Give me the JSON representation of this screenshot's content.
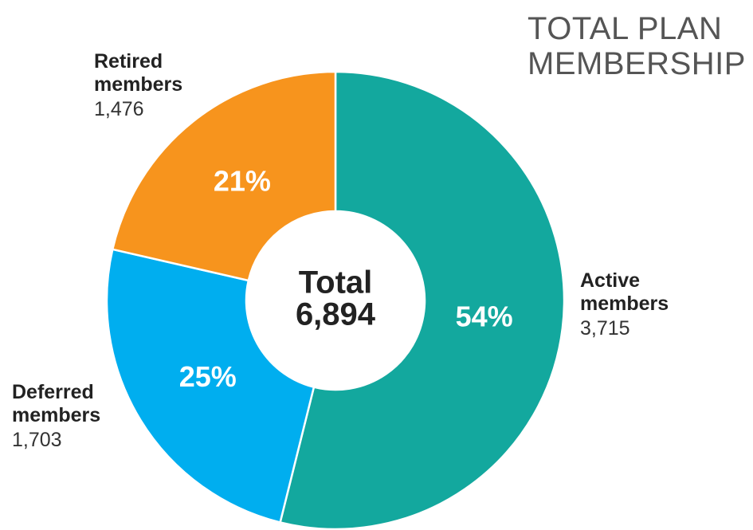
{
  "chart_data": {
    "type": "donut",
    "title": "TOTAL PLAN MEMBERSHIP",
    "categories": [
      "Active members",
      "Deferred members",
      "Retired members"
    ],
    "values": [
      3715,
      1703,
      1476
    ],
    "value_labels": [
      "3,715",
      "1,703",
      "1,476"
    ],
    "percents": [
      54,
      25,
      21
    ],
    "percent_labels": [
      "54%",
      "25%",
      "21%"
    ],
    "colors": [
      "#13a89e",
      "#00aeef",
      "#f7941d"
    ],
    "center_label": "Total",
    "total": 6894,
    "total_label": "6,894"
  }
}
